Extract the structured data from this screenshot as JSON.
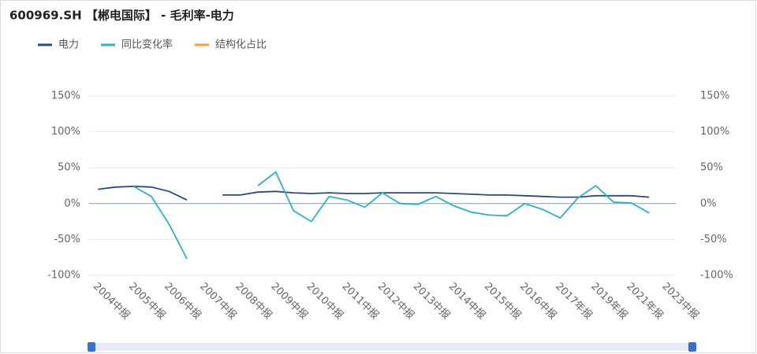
{
  "chart_data": {
    "type": "line",
    "title": "600969.SH 【郴电国际】 - 毛利率-电力",
    "categories": [
      "2004中报",
      null,
      "2005中报",
      null,
      "2006中报",
      null,
      "2007中报",
      null,
      "2008中报",
      null,
      "2009中报",
      null,
      "2010中报",
      null,
      "2011中报",
      null,
      "2012中报",
      null,
      "2013中报",
      null,
      "2014中报",
      null,
      "2015中报",
      null,
      "2016中报",
      null,
      "2017年报",
      null,
      "2019年报",
      null,
      "2021年报",
      null,
      "2023中报"
    ],
    "series": [
      {
        "name": "电力",
        "color": "#2e4a7a",
        "values": [
          20,
          23,
          24,
          23,
          17,
          5,
          null,
          12,
          12,
          16,
          17,
          15,
          14,
          15,
          14,
          14,
          15,
          15,
          15,
          15,
          14,
          13,
          12,
          12,
          11,
          10,
          9,
          9,
          11,
          11,
          11,
          9,
          null
        ]
      },
      {
        "name": "同比变化率",
        "color": "#2bb5b8",
        "values": [
          null,
          null,
          24,
          10,
          -29,
          -77,
          null,
          null,
          null,
          25,
          44,
          -10,
          -25,
          10,
          5,
          -5,
          15,
          0,
          -1,
          10,
          -3,
          -12,
          -16,
          -17,
          0,
          -8,
          -20,
          8,
          25,
          2,
          1,
          -13,
          null
        ]
      },
      {
        "name": "结构化占比",
        "color": "#f0a040",
        "values": [
          null,
          null,
          null,
          null,
          null,
          null,
          null,
          null,
          null,
          null,
          null,
          null,
          null,
          null,
          null,
          null,
          null,
          null,
          null,
          null,
          null,
          null,
          null,
          null,
          null,
          null,
          null,
          null,
          null,
          null,
          null,
          null,
          null
        ]
      }
    ],
    "ylim": [
      -100,
      150
    ],
    "yticks": [
      {
        "value": -100,
        "label": "-100%"
      },
      {
        "value": -50,
        "label": "-50%"
      },
      {
        "value": 0,
        "label": "0%"
      },
      {
        "value": 50,
        "label": "50%"
      },
      {
        "value": 100,
        "label": "100%"
      },
      {
        "value": 150,
        "label": "150%"
      }
    ],
    "y2lim": [
      -100,
      150
    ],
    "y2ticks": [
      {
        "value": -100,
        "label": "-100%"
      },
      {
        "value": -50,
        "label": "-50%"
      },
      {
        "value": 0,
        "label": "0%"
      },
      {
        "value": 50,
        "label": "50%"
      },
      {
        "value": 100,
        "label": "100%"
      },
      {
        "value": 150,
        "label": "150%"
      }
    ],
    "grid": true,
    "legend": "top-left"
  }
}
